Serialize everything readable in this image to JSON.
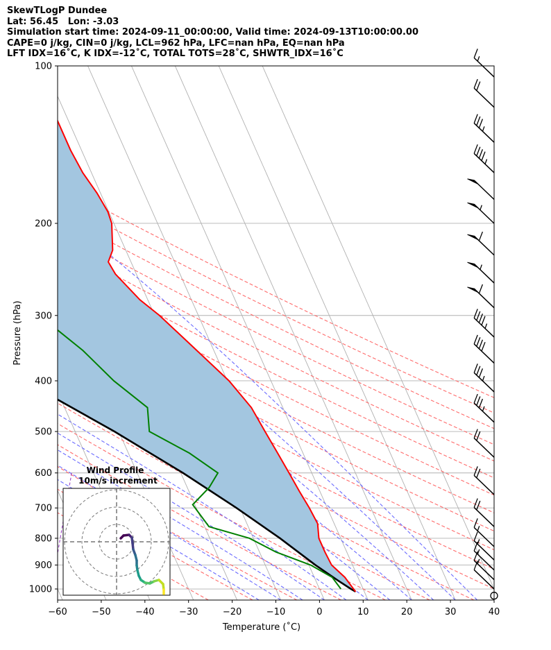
{
  "header": {
    "line1": "SkewTLogP Dundee",
    "line2": "Lat: 56.45   Lon: -3.03",
    "line3": "Simulation start time: 2024-09-11_00:00:00, Valid time: 2024-09-13T10:00:00.00",
    "line4": "CAPE=0 j/kg, CIN=0 j/kg, LCL=962 hPa, LFC=nan hPa, EQ=nan hPa",
    "line5": "LFT IDX=16˚C, K IDX=-12˚C, TOTAL TOTS=28˚C, SHWTR_IDX=16˚C"
  },
  "chart_data": {
    "type": "line",
    "xlabel": "Temperature (˚C)",
    "ylabel": "Pressure (hPa)",
    "xlim": [
      -60,
      40
    ],
    "ylim_hpa": [
      1050,
      100
    ],
    "y_scale": "log",
    "grid": true,
    "x_ticks": [
      -60,
      -50,
      -40,
      -30,
      -20,
      -10,
      0,
      10,
      20,
      30,
      40
    ],
    "y_ticks": [
      100,
      200,
      300,
      400,
      500,
      600,
      700,
      800,
      900,
      1000
    ],
    "colors": {
      "temperature": "#ff0000",
      "dewpoint": "#008000",
      "parcel": "#000000",
      "cape_fill": "#a3c6e0",
      "dry_adiabat": "#ff6a6a",
      "moist_adiabat": "#6a6aff",
      "mixing_ratio": "#9a44c2",
      "isotherm": "#b0b0b0"
    },
    "series": [
      {
        "key": "temperature",
        "pressure": [
          1012,
          1000,
          950,
          900,
          850,
          800,
          750,
          700,
          650,
          600,
          550,
          500,
          450,
          400,
          350,
          300,
          280,
          250,
          237,
          225,
          200,
          190,
          175,
          160,
          145,
          130,
          115,
          100
        ],
        "values": [
          8.0,
          7.8,
          7.0,
          5.2,
          5.0,
          5.0,
          6.2,
          5.9,
          5.3,
          4.8,
          4.2,
          3.5,
          2.8,
          0.4,
          -3.9,
          -8.9,
          -11.8,
          -14.8,
          -15.2,
          -13.0,
          -10.5,
          -10.2,
          -10.8,
          -12.0,
          -12.5,
          -12.5,
          -12.5,
          -12.5
        ]
      },
      {
        "key": "dewpoint",
        "pressure": [
          1000,
          950,
          900,
          850,
          800,
          760,
          690,
          640,
          600,
          550,
          500,
          450,
          400,
          350,
          300,
          280,
          250,
          225,
          200,
          180,
          170,
          100
        ],
        "values": [
          4.9,
          4.1,
          0.4,
          -6.2,
          -10.9,
          -19.0,
          -20.5,
          -15.0,
          -11.5,
          -16.0,
          -23.0,
          -21.0,
          -26.0,
          -30.0,
          -36.4,
          -38.9,
          -42.0,
          -45.0,
          -48.5,
          -53.0,
          -57.0,
          -70.0
        ]
      },
      {
        "key": "parcel",
        "pressure": [
          1012,
          1000,
          962,
          900,
          800,
          700,
          600,
          500,
          400,
          300,
          200,
          150,
          100
        ],
        "values": [
          8.0,
          7.2,
          5.0,
          1.5,
          -3.9,
          -10.8,
          -19.5,
          -31.0,
          -46.5,
          -68.0,
          -95.0,
          -113.0,
          -135.0
        ]
      }
    ],
    "wind_barbs": {
      "pressure": [
        1030,
        1000,
        960,
        920,
        880,
        830,
        760,
        660,
        560,
        480,
        420,
        370,
        330,
        290,
        260,
        230,
        200,
        180,
        160,
        140,
        120,
        105
      ],
      "speed_kt": [
        10,
        10,
        15,
        15,
        15,
        15,
        20,
        20,
        20,
        35,
        35,
        40,
        45,
        60,
        55,
        60,
        55,
        50,
        45,
        35,
        20,
        15
      ],
      "calm_marker_pressure": 1030
    },
    "hodograph": {
      "title": "Wind Profile",
      "subtitle": "10m/s increment",
      "ring_count": 3
    }
  }
}
